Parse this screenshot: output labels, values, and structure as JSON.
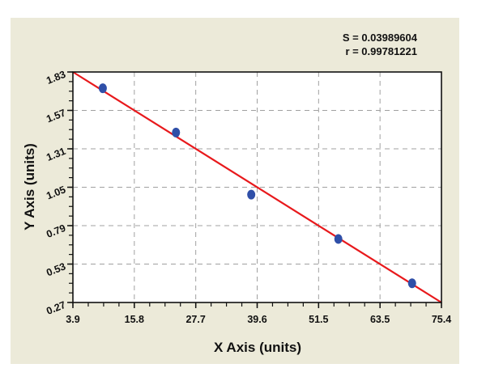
{
  "stats": {
    "s_label": "S = 0.03989604",
    "r_label": "r = 0.99781221"
  },
  "colors": {
    "panel_bg": "#ecead9",
    "plot_bg": "#ffffff",
    "fit_line": "#e8191c",
    "points": "#2f4fa8",
    "grid": "#a0a0a0"
  },
  "chart_data": {
    "type": "scatter",
    "title": "",
    "xlabel": "X Axis (units)",
    "ylabel": "Y Axis (units)",
    "xlim": [
      3.9,
      75.4
    ],
    "ylim": [
      0.27,
      1.83
    ],
    "x_ticks": [
      "3.9",
      "15.8",
      "27.7",
      "39.6",
      "51.5",
      "63.5",
      "75.4"
    ],
    "y_ticks": [
      "0.27",
      "0.53",
      "0.79",
      "1.05",
      "1.31",
      "1.57",
      "1.83"
    ],
    "grid": true,
    "grid_style": "dashed",
    "legend": null,
    "annotations": [
      "S = 0.03989604",
      "r = 0.99781221"
    ],
    "series": [
      {
        "name": "data points",
        "type": "scatter",
        "x": [
          9.7,
          23.9,
          38.5,
          55.4,
          69.7
        ],
        "y": [
          1.72,
          1.42,
          1.0,
          0.7,
          0.4
        ]
      },
      {
        "name": "linear fit",
        "type": "line",
        "x": [
          3.9,
          75.4
        ],
        "y": [
          1.83,
          0.27
        ]
      }
    ]
  }
}
